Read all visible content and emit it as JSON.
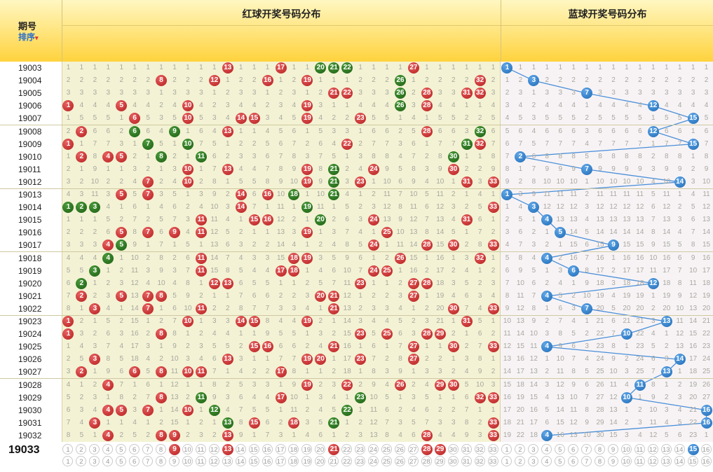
{
  "header": {
    "issue_title": "期号",
    "sort_label": "排序",
    "red_title": "红球开奖号码分布",
    "blue_title": "蓝球开奖号码分布"
  },
  "red_numbers": [
    "01",
    "02",
    "03",
    "04",
    "05",
    "06",
    "07",
    "08",
    "09",
    "10",
    "11",
    "12",
    "13",
    "14",
    "15",
    "16",
    "17",
    "18",
    "19",
    "20",
    "21",
    "22",
    "23",
    "24",
    "25",
    "26",
    "27",
    "28",
    "29",
    "30",
    "31",
    "32",
    "33"
  ],
  "blue_numbers": [
    "01",
    "02",
    "03",
    "04",
    "05",
    "06",
    "07",
    "08",
    "09",
    "10",
    "11",
    "12",
    "13",
    "14",
    "15",
    "16"
  ],
  "current_issue": "19033",
  "current_red_picks": [
    9,
    13,
    21,
    28,
    29
  ],
  "current_blue_pick": 15,
  "colors": {
    "red_ball": "#c62828",
    "green_ball": "#2e7d1e",
    "blue_ball": "#2a7fd0",
    "trend_line": "#4a8fd8"
  },
  "draws": [
    {
      "issue": "19003",
      "red": [
        13,
        17,
        20,
        21,
        22,
        27
      ],
      "green": [
        20,
        21,
        22
      ],
      "blue": 1
    },
    {
      "issue": "19004",
      "red": [
        8,
        12,
        16,
        19,
        26,
        32
      ],
      "green": [
        26
      ],
      "blue": 3
    },
    {
      "issue": "19005",
      "red": [
        21,
        22,
        26,
        28,
        31,
        32
      ],
      "green": [
        26
      ],
      "blue": 7
    },
    {
      "issue": "19006",
      "red": [
        1,
        5,
        10,
        19,
        26,
        28
      ],
      "green": [
        26
      ],
      "blue": 12
    },
    {
      "issue": "19007",
      "red": [
        6,
        10,
        14,
        15,
        19,
        23
      ],
      "green": [],
      "blue": 15
    },
    {
      "issue": "19008",
      "red": [
        2,
        6,
        9,
        13,
        28,
        32
      ],
      "green": [
        6,
        9,
        32
      ],
      "blue": 12
    },
    {
      "issue": "19009",
      "red": [
        1,
        7,
        10,
        22,
        31,
        32
      ],
      "green": [
        7,
        10,
        31
      ],
      "blue": 15
    },
    {
      "issue": "19010",
      "red": [
        2,
        4,
        5,
        8,
        11,
        30
      ],
      "green": [
        8,
        11,
        30
      ],
      "blue": 2
    },
    {
      "issue": "19011",
      "red": [
        10,
        13,
        19,
        21,
        24,
        30
      ],
      "green": [
        21
      ],
      "blue": 7
    },
    {
      "issue": "19012",
      "red": [
        7,
        10,
        19,
        21,
        23,
        31,
        33
      ],
      "green": [
        21
      ],
      "blue": 14
    },
    {
      "issue": "19013",
      "red": [
        5,
        7,
        14,
        16,
        18,
        21
      ],
      "green": [
        18,
        21
      ],
      "blue": 1
    },
    {
      "issue": "19014",
      "red": [
        1,
        2,
        3,
        14,
        19,
        33
      ],
      "green": [
        1,
        2,
        3,
        19
      ],
      "blue": 3
    },
    {
      "issue": "19015",
      "red": [
        11,
        15,
        16,
        20,
        24,
        31
      ],
      "green": [
        20
      ],
      "blue": 4
    },
    {
      "issue": "19016",
      "red": [
        5,
        7,
        9,
        11,
        19,
        25
      ],
      "green": [],
      "blue": 5
    },
    {
      "issue": "19017",
      "red": [
        4,
        5,
        24,
        28,
        30,
        33
      ],
      "green": [
        5
      ],
      "blue": 9
    },
    {
      "issue": "19018",
      "red": [
        4,
        11,
        18,
        19,
        26,
        32
      ],
      "green": [
        4
      ],
      "blue": 4
    },
    {
      "issue": "19019",
      "red": [
        3,
        11,
        17,
        18,
        24,
        25
      ],
      "green": [
        3
      ],
      "blue": 6
    },
    {
      "issue": "19020",
      "red": [
        2,
        12,
        13,
        23,
        27,
        28
      ],
      "green": [
        2
      ],
      "blue": 12
    },
    {
      "issue": "19021",
      "red": [
        2,
        5,
        7,
        8,
        20,
        21,
        27
      ],
      "green": [],
      "blue": 4
    },
    {
      "issue": "19022",
      "red": [
        3,
        7,
        11,
        21,
        30,
        33
      ],
      "green": [],
      "blue": 7
    },
    {
      "issue": "19023",
      "red": [
        1,
        10,
        14,
        15,
        19,
        31
      ],
      "green": [],
      "blue": 13
    },
    {
      "issue": "19024",
      "red": [
        1,
        8,
        23,
        25,
        28,
        29
      ],
      "green": [],
      "blue": 10
    },
    {
      "issue": "19025",
      "red": [
        15,
        16,
        21,
        27,
        30,
        33
      ],
      "green": [],
      "blue": 4
    },
    {
      "issue": "19026",
      "red": [
        3,
        13,
        19,
        20,
        23,
        27
      ],
      "green": [],
      "blue": 14
    },
    {
      "issue": "19027",
      "red": [
        2,
        6,
        8,
        10,
        11,
        17
      ],
      "green": [],
      "blue": 13
    },
    {
      "issue": "19028",
      "red": [
        4,
        19,
        22,
        26,
        29,
        30
      ],
      "green": [],
      "blue": 11
    },
    {
      "issue": "19029",
      "red": [
        8,
        11,
        17,
        23,
        32,
        33
      ],
      "green": [
        11,
        23
      ],
      "blue": 10
    },
    {
      "issue": "19030",
      "red": [
        4,
        5,
        7,
        10,
        12,
        22
      ],
      "green": [
        12,
        22
      ],
      "blue": 16
    },
    {
      "issue": "19031",
      "red": [
        3,
        13,
        15,
        18,
        21,
        33
      ],
      "green": [
        13,
        21
      ],
      "blue": 16
    },
    {
      "issue": "19032",
      "red": [
        4,
        8,
        9,
        13,
        28,
        33
      ],
      "green": [],
      "blue": 4
    }
  ]
}
